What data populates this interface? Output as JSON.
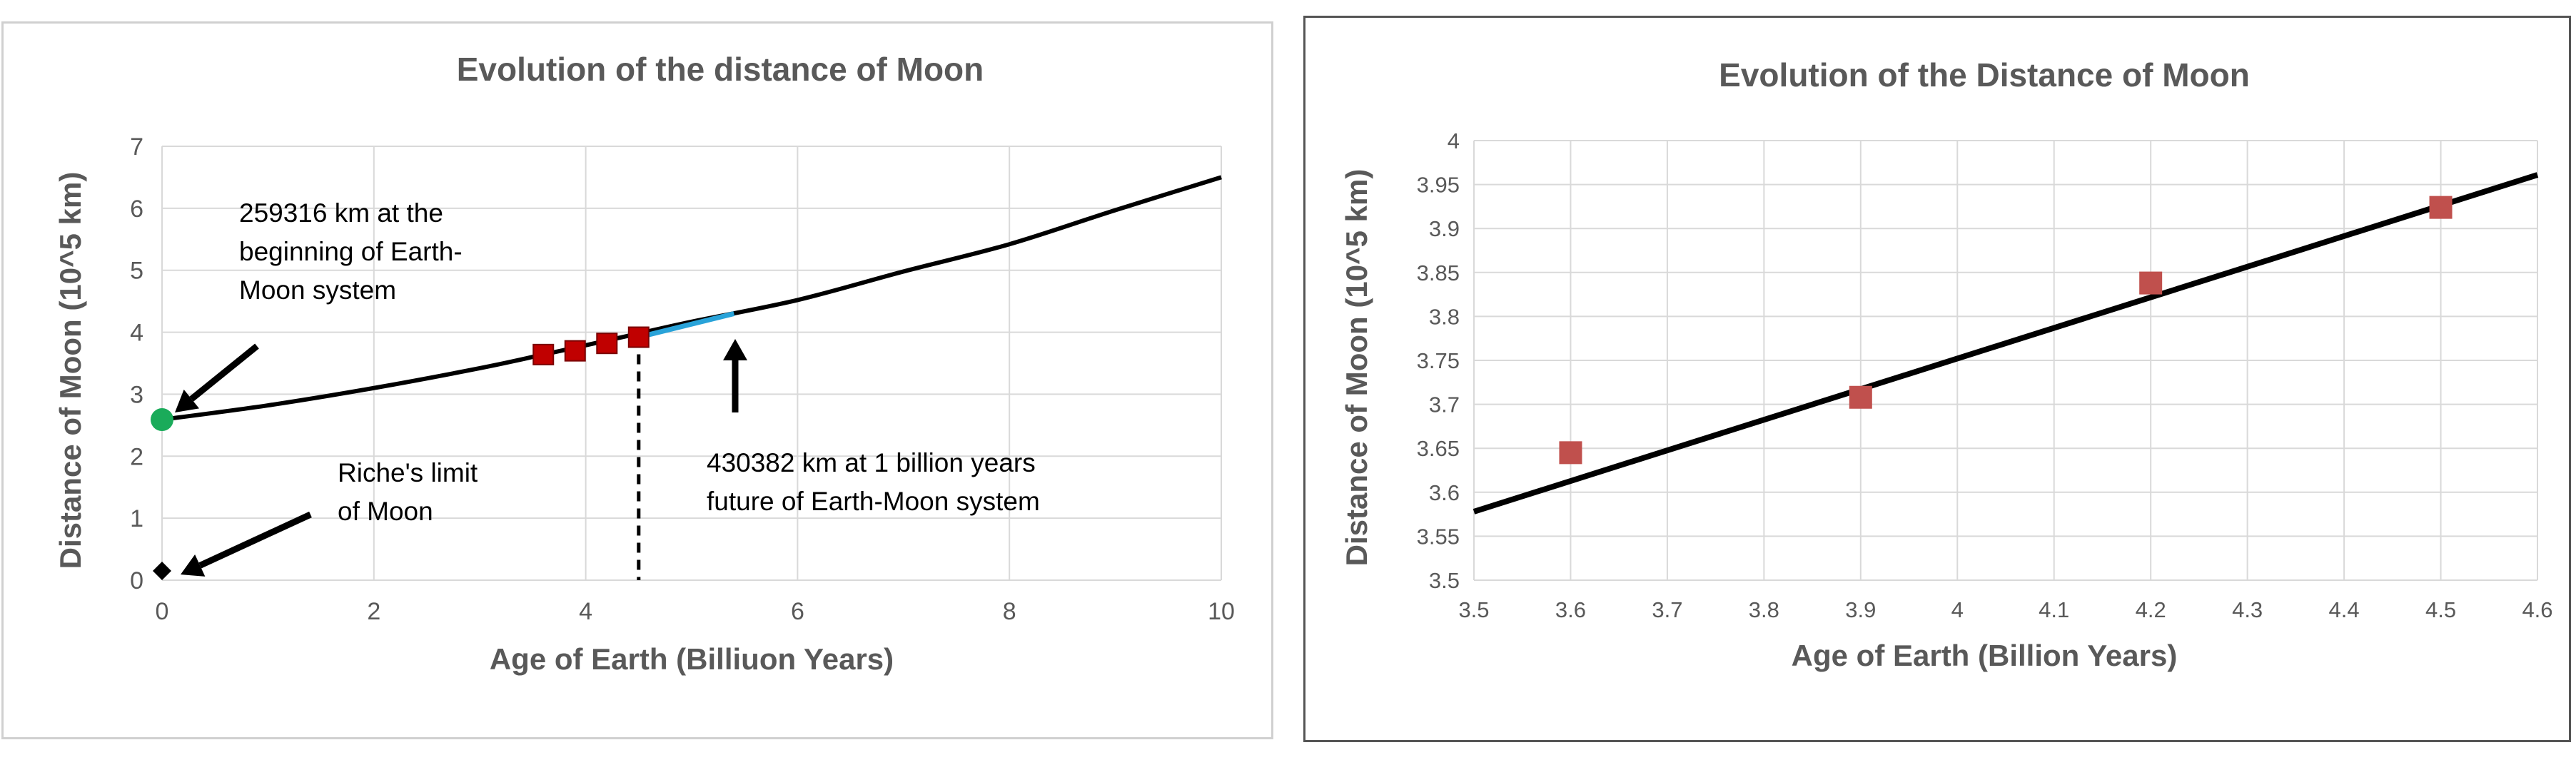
{
  "chart_data": [
    {
      "type": "line",
      "title": "Evolution of the distance of Moon",
      "xlabel": "Age of Earth (Billiuon Years)",
      "ylabel": "Distance of Moon (10^5 km)",
      "xlim": [
        0,
        10
      ],
      "ylim": [
        0,
        7
      ],
      "xticks": [
        "0",
        "2",
        "4",
        "6",
        "8",
        "10"
      ],
      "yticks": [
        "0",
        "1",
        "2",
        "3",
        "4",
        "5",
        "6",
        "7"
      ],
      "grid": true,
      "series": [
        {
          "type": "line",
          "color": "#000000",
          "x": [
            0,
            1,
            2,
            3,
            3.6,
            4,
            4.5,
            5,
            6,
            7,
            8,
            9,
            10
          ],
          "y": [
            2.59,
            2.82,
            3.1,
            3.42,
            3.64,
            3.79,
            3.98,
            4.17,
            4.52,
            4.98,
            5.42,
            5.97,
            6.5
          ]
        },
        {
          "type": "line",
          "color": "#29a3d9",
          "x": [
            4.5,
            5.4
          ],
          "y": [
            3.92,
            4.3
          ]
        },
        {
          "type": "scatter",
          "marker": "square",
          "color": "#c00000",
          "x": [
            3.6,
            3.9,
            4.2,
            4.5
          ],
          "y": [
            3.64,
            3.7,
            3.82,
            3.92
          ]
        },
        {
          "type": "scatter",
          "marker": "circle",
          "color": "#1aab5a",
          "x": [
            0
          ],
          "y": [
            2.59
          ]
        },
        {
          "type": "scatter",
          "marker": "diamond",
          "color": "#000000",
          "x": [
            0
          ],
          "y": [
            0.15
          ]
        }
      ],
      "vline": {
        "x": 4.5,
        "y_top": 3.92,
        "style": "dashed"
      },
      "annotations": [
        {
          "lines": [
            "259316 km at the",
            "beginning of Earth-",
            "Moon system"
          ]
        },
        {
          "lines": [
            "Riche's limit",
            "of Moon"
          ]
        },
        {
          "lines": [
            "430382 km at 1 billion years",
            "future of Earth-Moon system"
          ]
        }
      ]
    },
    {
      "type": "scatter",
      "title": "Evolution of the Distance of Moon",
      "xlabel": "Age of Earth (Billion Years)",
      "ylabel": "Distance of Moon (10^5 km)",
      "xlim": [
        3.5,
        4.6
      ],
      "ylim": [
        3.5,
        4.0
      ],
      "xticks": [
        "3.5",
        "3.6",
        "3.7",
        "3.8",
        "3.9",
        "4",
        "4.1",
        "4.2",
        "4.3",
        "4.4",
        "4.5",
        "4.6"
      ],
      "yticks": [
        "3.5",
        "3.55",
        "3.6",
        "3.65",
        "3.7",
        "3.75",
        "3.8",
        "3.85",
        "3.9",
        "3.95",
        "4"
      ],
      "grid": true,
      "series": [
        {
          "type": "scatter",
          "marker": "square",
          "color": "#c0504d",
          "x": [
            3.6,
            3.9,
            4.2,
            4.5
          ],
          "y": [
            3.645,
            3.708,
            3.838,
            3.924
          ]
        },
        {
          "type": "line",
          "color": "#000000",
          "x": [
            3.5,
            4.6
          ],
          "y": [
            3.578,
            3.961
          ]
        }
      ]
    }
  ]
}
